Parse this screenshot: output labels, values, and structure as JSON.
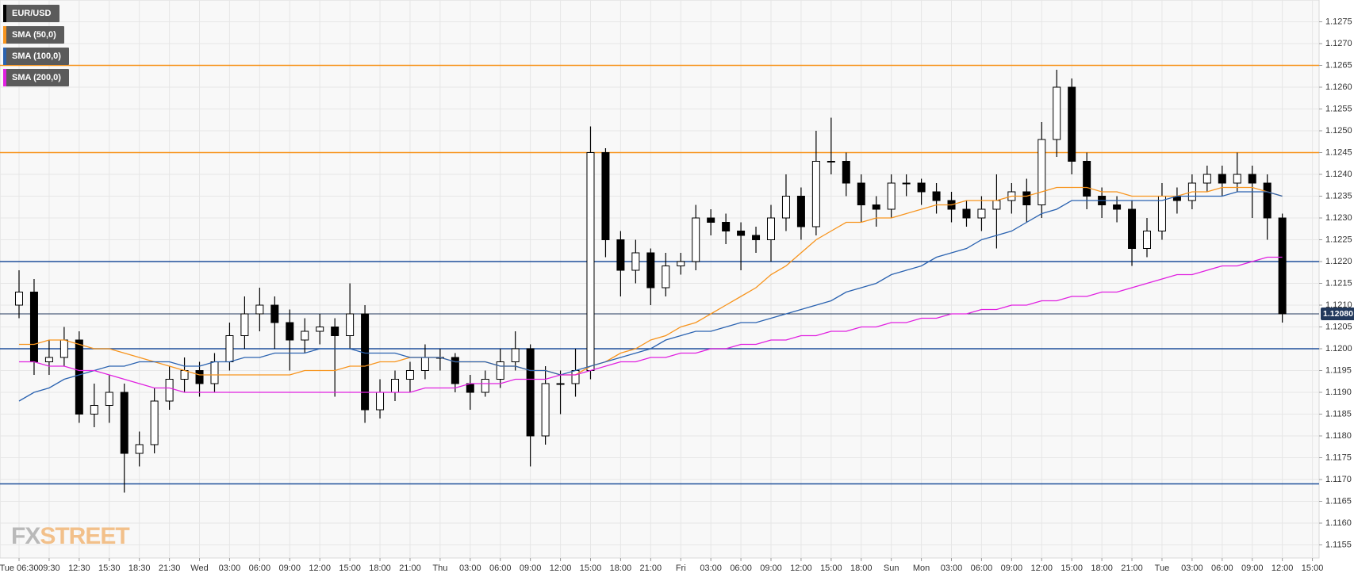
{
  "chart_data": {
    "type": "candlestick",
    "categories": [
      "Tue 06:30",
      null,
      "09:30",
      null,
      "12:30",
      null,
      "15:30",
      null,
      "18:30",
      null,
      "21:30",
      null,
      "Wed",
      null,
      "03:00",
      null,
      "06:00",
      null,
      "09:00",
      null,
      "12:00",
      null,
      "15:00",
      null,
      "18:00",
      null,
      "21:00",
      null,
      "Thu",
      null,
      "03:00",
      null,
      "06:00",
      null,
      "09:00",
      null,
      "12:00",
      null,
      "15:00",
      null,
      "18:00",
      null,
      "21:00",
      null,
      "Fri",
      null,
      "03:00",
      null,
      "06:00",
      null,
      "09:00",
      null,
      "12:00",
      null,
      "15:00",
      null,
      "18:00",
      null,
      "Sun",
      null,
      "Mon",
      null,
      "03:00",
      null,
      "06:00",
      null,
      "09:00",
      null,
      "12:00",
      null,
      "15:00",
      null,
      "18:00",
      null,
      "21:00",
      null,
      "Tue",
      null,
      "03:00",
      null,
      "06:00",
      null,
      "09:00",
      null,
      "12:00",
      null,
      "15:00"
    ],
    "series": [
      {
        "name": "EUR/USD",
        "color": "#000000",
        "up_color": "#ffffff",
        "open": [
          1.121,
          1.1213,
          1.1197,
          1.1198,
          1.1202,
          1.1185,
          1.1187,
          1.119,
          1.1176,
          1.1178,
          1.1188,
          1.1193,
          1.1195,
          1.1192,
          1.1197,
          1.1203,
          1.1208,
          1.121,
          1.1206,
          1.1202,
          1.1204,
          1.1205,
          1.1203,
          1.1208,
          1.1186,
          1.119,
          1.1193,
          1.1195,
          1.1198,
          1.1198,
          1.1192,
          1.119,
          1.1193,
          1.1197,
          1.12,
          1.118,
          1.1192,
          1.1192,
          1.1195,
          1.1245,
          1.1225,
          1.1218,
          1.1222,
          1.1214,
          1.1219,
          1.122,
          1.123,
          1.1229,
          1.1227,
          1.1226,
          1.1225,
          1.123,
          1.1235,
          1.1228,
          1.1243,
          1.1243,
          1.1238,
          1.1233,
          1.1232,
          1.1238,
          1.1238,
          1.1236,
          1.1234,
          1.1232,
          1.123,
          1.1232,
          1.1234,
          1.1236,
          1.1233,
          1.1248,
          1.126,
          1.1243,
          1.1235,
          1.1233,
          1.1232,
          1.1223,
          1.1227,
          1.1235,
          1.1234,
          1.1238,
          1.124,
          1.1238,
          1.124,
          1.1238,
          1.123,
          null,
          null
        ],
        "high": [
          1.1218,
          1.1216,
          1.1202,
          1.1205,
          1.1204,
          1.1192,
          1.1194,
          1.1192,
          1.1181,
          1.1191,
          1.1196,
          1.1198,
          1.1197,
          1.1199,
          1.1206,
          1.1212,
          1.1214,
          1.1212,
          1.1209,
          1.1207,
          1.1208,
          1.1207,
          1.1215,
          1.121,
          1.1193,
          1.1195,
          1.1197,
          1.1201,
          1.12,
          1.1199,
          1.1194,
          1.1195,
          1.12,
          1.1204,
          1.1201,
          1.1196,
          1.1195,
          1.12,
          1.1251,
          1.1246,
          1.1227,
          1.1225,
          1.1223,
          1.1222,
          1.1222,
          1.1233,
          1.1232,
          1.1231,
          1.1229,
          1.1228,
          1.1233,
          1.124,
          1.1237,
          1.125,
          1.1253,
          1.1245,
          1.124,
          1.1235,
          1.124,
          1.124,
          1.1239,
          1.1238,
          1.1236,
          1.1234,
          1.1235,
          1.124,
          1.1238,
          1.1239,
          1.1252,
          1.1264,
          1.1262,
          1.1245,
          1.1237,
          1.1235,
          1.1234,
          1.123,
          1.1238,
          1.1237,
          1.124,
          1.1242,
          1.1242,
          1.1245,
          1.1242,
          1.124,
          1.1231,
          null,
          null
        ],
        "low": [
          1.1207,
          1.1194,
          1.1194,
          1.1196,
          1.1183,
          1.1182,
          1.1183,
          1.1167,
          1.1173,
          1.1176,
          1.1186,
          1.119,
          1.1189,
          1.119,
          1.1195,
          1.12,
          1.1204,
          1.12,
          1.1195,
          1.1199,
          1.1201,
          1.1189,
          1.12,
          1.1183,
          1.1184,
          1.1188,
          1.119,
          1.1193,
          1.1195,
          1.119,
          1.1186,
          1.1189,
          1.1191,
          1.1195,
          1.1173,
          1.1178,
          1.1185,
          1.1189,
          1.1193,
          1.1221,
          1.1212,
          1.1215,
          1.121,
          1.1212,
          1.1217,
          1.1218,
          1.1226,
          1.1224,
          1.1218,
          1.1222,
          1.122,
          1.1227,
          1.1225,
          1.1226,
          1.124,
          1.1235,
          1.1229,
          1.1228,
          1.123,
          1.1235,
          1.1233,
          1.1231,
          1.1229,
          1.1228,
          1.1227,
          1.1223,
          1.1231,
          1.1229,
          1.123,
          1.1244,
          1.124,
          1.1232,
          1.123,
          1.1229,
          1.1219,
          1.1221,
          1.1225,
          1.1231,
          1.1232,
          1.1236,
          1.1235,
          1.1236,
          1.123,
          1.1225,
          1.1206,
          null,
          null
        ],
        "close": [
          1.1213,
          1.1197,
          1.1198,
          1.1202,
          1.1185,
          1.1187,
          1.119,
          1.1176,
          1.1178,
          1.1188,
          1.1193,
          1.1195,
          1.1192,
          1.1197,
          1.1203,
          1.1208,
          1.121,
          1.1206,
          1.1202,
          1.1204,
          1.1205,
          1.1203,
          1.1208,
          1.1186,
          1.119,
          1.1193,
          1.1195,
          1.1198,
          1.1198,
          1.1192,
          1.119,
          1.1193,
          1.1197,
          1.12,
          1.118,
          1.1192,
          1.1192,
          1.1195,
          1.1245,
          1.1225,
          1.1218,
          1.1222,
          1.1214,
          1.1219,
          1.122,
          1.123,
          1.1229,
          1.1227,
          1.1226,
          1.1225,
          1.123,
          1.1235,
          1.1228,
          1.1243,
          1.1243,
          1.1238,
          1.1233,
          1.1232,
          1.1238,
          1.1238,
          1.1236,
          1.1234,
          1.1232,
          1.123,
          1.1232,
          1.1234,
          1.1236,
          1.1233,
          1.1248,
          1.126,
          1.1243,
          1.1235,
          1.1233,
          1.1232,
          1.1223,
          1.1227,
          1.1235,
          1.1234,
          1.1238,
          1.124,
          1.1238,
          1.124,
          1.1238,
          1.123,
          1.1208,
          null,
          null
        ]
      },
      {
        "name": "SMA (50,0)",
        "color": "#f7941d",
        "values": [
          1.1201,
          1.1201,
          1.1202,
          1.1202,
          1.1201,
          1.12,
          1.12,
          1.1199,
          1.1198,
          1.1197,
          1.1196,
          1.1195,
          1.1194,
          1.1194,
          1.1194,
          1.1194,
          1.1194,
          1.1194,
          1.1194,
          1.1195,
          1.1195,
          1.1195,
          1.1196,
          1.1196,
          1.1197,
          1.1197,
          1.1198,
          1.1198,
          1.1198,
          1.1197,
          1.1197,
          1.1197,
          1.1196,
          1.1196,
          1.1195,
          1.1195,
          1.1194,
          1.1194,
          1.1196,
          1.1197,
          1.1199,
          1.12,
          1.1202,
          1.1203,
          1.1205,
          1.1206,
          1.1208,
          1.121,
          1.1212,
          1.1214,
          1.1217,
          1.1219,
          1.1222,
          1.1225,
          1.1227,
          1.1229,
          1.1229,
          1.123,
          1.123,
          1.1231,
          1.1232,
          1.1233,
          1.1233,
          1.1234,
          1.1234,
          1.1234,
          1.1235,
          1.1235,
          1.1236,
          1.1237,
          1.1237,
          1.1237,
          1.1236,
          1.1236,
          1.1235,
          1.1235,
          1.1235,
          1.1235,
          1.1236,
          1.1236,
          1.1237,
          1.1237,
          1.1237,
          1.1236,
          1.1235,
          null,
          null
        ]
      },
      {
        "name": "SMA (100,0)",
        "color": "#2a62b0",
        "values": [
          1.1188,
          1.119,
          1.1191,
          1.1193,
          1.1194,
          1.1195,
          1.1196,
          1.1196,
          1.1197,
          1.1197,
          1.1197,
          1.1196,
          1.1196,
          1.1197,
          1.1197,
          1.1198,
          1.1198,
          1.1199,
          1.1199,
          1.1199,
          1.12,
          1.12,
          1.12,
          1.1199,
          1.1199,
          1.1199,
          1.1198,
          1.1198,
          1.1198,
          1.1197,
          1.1197,
          1.1197,
          1.1196,
          1.1196,
          1.1195,
          1.1195,
          1.1194,
          1.1195,
          1.1196,
          1.1197,
          1.1198,
          1.1199,
          1.12,
          1.1202,
          1.1203,
          1.1204,
          1.1204,
          1.1205,
          1.1206,
          1.1206,
          1.1207,
          1.1208,
          1.1209,
          1.121,
          1.1211,
          1.1213,
          1.1214,
          1.1215,
          1.1217,
          1.1218,
          1.1219,
          1.1221,
          1.1222,
          1.1223,
          1.1225,
          1.1226,
          1.1227,
          1.1229,
          1.1231,
          1.1232,
          1.1234,
          1.1234,
          1.1234,
          1.1234,
          1.1234,
          1.1234,
          1.1234,
          1.1235,
          1.1235,
          1.1235,
          1.1235,
          1.1236,
          1.1236,
          1.1236,
          1.1235,
          null,
          null
        ]
      },
      {
        "name": "SMA (200,0)",
        "color": "#e020e0",
        "values": [
          1.1197,
          1.1197,
          1.1196,
          1.1196,
          1.1195,
          1.1195,
          1.1194,
          1.1193,
          1.1192,
          1.1191,
          1.1191,
          1.119,
          1.119,
          1.119,
          1.119,
          1.119,
          1.119,
          1.119,
          1.119,
          1.119,
          1.119,
          1.119,
          1.119,
          1.119,
          1.119,
          1.119,
          1.119,
          1.1191,
          1.1191,
          1.1191,
          1.1192,
          1.1192,
          1.1192,
          1.1193,
          1.1193,
          1.1193,
          1.1194,
          1.1194,
          1.1195,
          1.1196,
          1.1197,
          1.1197,
          1.1198,
          1.1198,
          1.1199,
          1.1199,
          1.12,
          1.12,
          1.1201,
          1.1201,
          1.1202,
          1.1202,
          1.1203,
          1.1203,
          1.1204,
          1.1204,
          1.1205,
          1.1205,
          1.1206,
          1.1206,
          1.1207,
          1.1207,
          1.1208,
          1.1208,
          1.1209,
          1.1209,
          1.121,
          1.121,
          1.1211,
          1.1211,
          1.1212,
          1.1212,
          1.1213,
          1.1213,
          1.1214,
          1.1215,
          1.1216,
          1.1217,
          1.1217,
          1.1218,
          1.1219,
          1.1219,
          1.122,
          1.1221,
          1.1221,
          null,
          null
        ]
      }
    ],
    "ylim": [
      1.1152,
      1.128
    ],
    "yticks": [
      1.1155,
      {
        "value": 1.116,
        "label": "1.1160"
      },
      1.1165,
      {
        "value": 1.117,
        "label": "1.1170"
      },
      1.1175,
      {
        "value": 1.118,
        "label": "1.1180"
      },
      1.1185,
      {
        "value": 1.119,
        "label": "1.1190"
      },
      1.1195,
      {
        "value": 1.12,
        "label": "1.1200"
      },
      1.1205,
      {
        "value": 1.121,
        "label": "1.1210"
      },
      1.1215,
      {
        "value": 1.122,
        "label": "1.1220"
      },
      1.1225,
      {
        "value": 1.123,
        "label": "1.1230"
      },
      1.1235,
      {
        "value": 1.124,
        "label": "1.1240"
      },
      1.1245,
      {
        "value": 1.125,
        "label": "1.1250"
      },
      1.1255,
      {
        "value": 1.126,
        "label": "1.1260"
      },
      1.1265,
      {
        "value": 1.127,
        "label": "1.1270"
      },
      1.1275
    ],
    "grid": true,
    "horizontal_lines": [
      {
        "value": 1.1265,
        "color": "#f7941d"
      },
      {
        "value": 1.1245,
        "color": "#f7941d"
      },
      {
        "value": 1.122,
        "color": "#1f4f9a"
      },
      {
        "value": 1.12,
        "color": "#1f4f9a"
      },
      {
        "value": 1.1169,
        "color": "#1f4f9a"
      }
    ],
    "last_price": {
      "value": 1.1208,
      "label": "1.12080",
      "color": "#22395c"
    },
    "legend": "top-left",
    "watermark": [
      "FX",
      "STREET"
    ]
  }
}
